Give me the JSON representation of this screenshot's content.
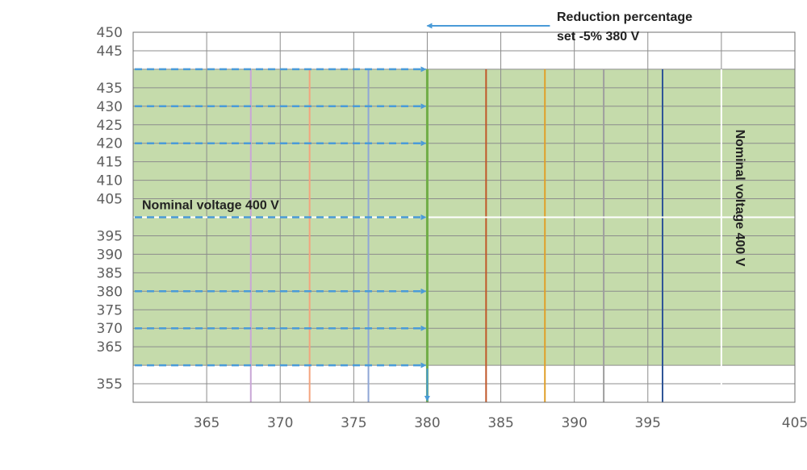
{
  "chart_data": {
    "type": "line",
    "title": "",
    "xlabel": "",
    "ylabel": "",
    "xlim": [
      360,
      405
    ],
    "ylim": [
      350,
      450
    ],
    "x_ticks": [
      365,
      370,
      375,
      380,
      385,
      390,
      395,
      405
    ],
    "y_ticks": [
      355,
      365,
      370,
      375,
      380,
      385,
      390,
      395,
      405,
      410,
      415,
      420,
      425,
      430,
      435,
      445,
      450
    ],
    "grid": true,
    "shaded_region": {
      "x": [
        360,
        405
      ],
      "y": [
        360,
        440
      ],
      "color": "#c5dbab"
    },
    "reference_lines": [
      {
        "orientation": "horizontal",
        "value": 400,
        "color": "#ffffff"
      },
      {
        "orientation": "vertical",
        "value": 380,
        "color": "#70ad47"
      },
      {
        "orientation": "vertical",
        "value": 400,
        "color": "#ffffff"
      }
    ],
    "series": [
      {
        "x": [
          368,
          368
        ],
        "y": [
          440,
          350
        ],
        "color": "#c9a6d6"
      },
      {
        "x": [
          372,
          372
        ],
        "y": [
          440,
          350
        ],
        "color": "#f4a47e"
      },
      {
        "x": [
          376,
          376
        ],
        "y": [
          440,
          350
        ],
        "color": "#8fa6d6"
      },
      {
        "x": [
          384,
          384
        ],
        "y": [
          440,
          350
        ],
        "color": "#c0582a"
      },
      {
        "x": [
          388,
          388
        ],
        "y": [
          440,
          350
        ],
        "color": "#e0a02a"
      },
      {
        "x": [
          392,
          392
        ],
        "y": [
          440,
          350
        ],
        "color": "#9e9e9e"
      },
      {
        "x": [
          396,
          396
        ],
        "y": [
          440,
          350
        ],
        "color": "#2f5597"
      }
    ],
    "arrows": [
      {
        "y": 440,
        "x_from": 360,
        "x_to": 380
      },
      {
        "y": 430,
        "x_from": 360,
        "x_to": 380
      },
      {
        "y": 420,
        "x_from": 360,
        "x_to": 380
      },
      {
        "y": 400,
        "x_from": 360,
        "x_to": 380
      },
      {
        "y": 380,
        "x_from": 360,
        "x_to": 380
      },
      {
        "y": 370,
        "x_from": 360,
        "x_to": 380
      },
      {
        "y": 360,
        "x_from": 360,
        "x_to": 380
      }
    ],
    "arrow_color": "#4a9bd8",
    "reduction_arrow": {
      "x": 380,
      "y_from": 450,
      "y_to": 350
    },
    "annotations": [
      {
        "text": "Reduction percentage",
        "x": 380,
        "y": 450
      },
      {
        "text": "set -5% 380 V",
        "x": 380,
        "y": 450
      },
      {
        "text": "Nominal voltage 400 V",
        "x": 360,
        "y": 400
      },
      {
        "text": "Nominal voltage 400 V",
        "x": 400,
        "y": 400,
        "rotation": 90
      }
    ]
  }
}
